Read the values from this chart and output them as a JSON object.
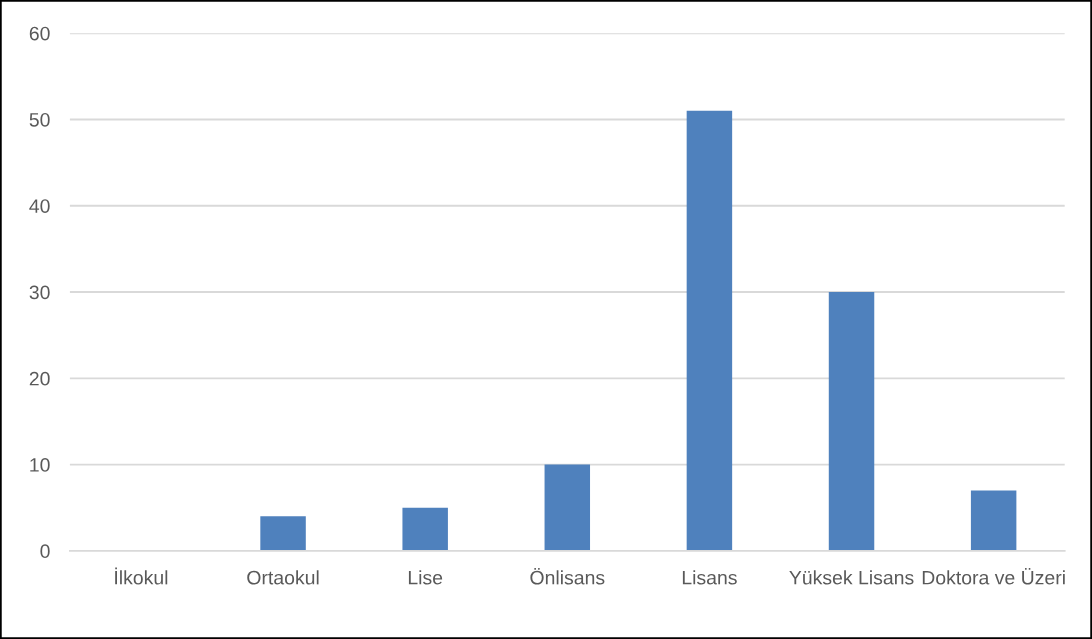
{
  "chart_data": {
    "type": "bar",
    "categories": [
      "İlkokul",
      "Ortaokul",
      "Lise",
      "Önlisans",
      "Lisans",
      "Yüksek Lisans",
      "Doktora ve Üzeri"
    ],
    "values": [
      0,
      4,
      5,
      10,
      51,
      30,
      7
    ],
    "color": "#4f81bd",
    "ylim": [
      0,
      60
    ],
    "yticks": [
      0,
      10,
      20,
      30,
      40,
      50,
      60
    ],
    "grid": "y"
  }
}
